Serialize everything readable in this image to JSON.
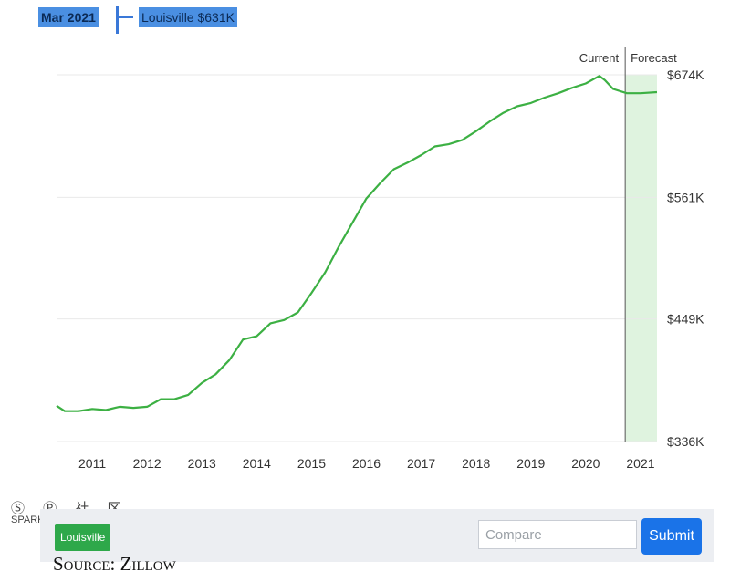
{
  "header": {
    "date": "Mar 2021",
    "series_label": "Louisville $631K"
  },
  "chart_data": {
    "type": "line",
    "title": "",
    "xlabel": "",
    "ylabel": "",
    "x_ticks": [
      "2011",
      "2012",
      "2013",
      "2014",
      "2015",
      "2016",
      "2017",
      "2018",
      "2019",
      "2020",
      "2021"
    ],
    "y_ticks": [
      "$336K",
      "$449K",
      "$561K",
      "$674K"
    ],
    "ylim": [
      336,
      674
    ],
    "xlim": [
      2010.35,
      2021.3
    ],
    "segment_labels": {
      "current": "Current",
      "forecast": "Forecast"
    },
    "forecast_start": 2020.72,
    "forecast_color": "#dff3df",
    "line_color": "#3cb043",
    "grid": true,
    "series": [
      {
        "name": "Louisville",
        "points": [
          [
            2010.35,
            369
          ],
          [
            2010.5,
            364
          ],
          [
            2010.75,
            364
          ],
          [
            2011.0,
            366
          ],
          [
            2011.25,
            365
          ],
          [
            2011.5,
            368
          ],
          [
            2011.75,
            367
          ],
          [
            2012.0,
            368
          ],
          [
            2012.25,
            375
          ],
          [
            2012.5,
            375
          ],
          [
            2012.75,
            379
          ],
          [
            2013.0,
            390
          ],
          [
            2013.25,
            398
          ],
          [
            2013.5,
            411
          ],
          [
            2013.75,
            430
          ],
          [
            2014.0,
            433
          ],
          [
            2014.25,
            445
          ],
          [
            2014.5,
            448
          ],
          [
            2014.75,
            455
          ],
          [
            2015.0,
            473
          ],
          [
            2015.25,
            492
          ],
          [
            2015.5,
            516
          ],
          [
            2015.75,
            538
          ],
          [
            2016.0,
            560
          ],
          [
            2016.25,
            574
          ],
          [
            2016.5,
            587
          ],
          [
            2016.75,
            593
          ],
          [
            2017.0,
            600
          ],
          [
            2017.25,
            608
          ],
          [
            2017.5,
            610
          ],
          [
            2017.75,
            614
          ],
          [
            2018.0,
            622
          ],
          [
            2018.25,
            631
          ],
          [
            2018.5,
            639
          ],
          [
            2018.75,
            645
          ],
          [
            2019.0,
            648
          ],
          [
            2019.25,
            653
          ],
          [
            2019.5,
            657
          ],
          [
            2019.75,
            662
          ],
          [
            2020.0,
            666
          ],
          [
            2020.25,
            673
          ],
          [
            2020.35,
            669
          ],
          [
            2020.5,
            661
          ],
          [
            2020.75,
            657
          ],
          [
            2021.0,
            657
          ],
          [
            2021.3,
            658
          ]
        ]
      }
    ]
  },
  "compare": {
    "placeholder": "Compare"
  },
  "submit_label": "Submit",
  "chip_label": "Louisville",
  "source": "Source: Zillow",
  "watermark": {
    "top": "Ⓢ Ⓟ 社 区",
    "bottom": "SPARK.COM"
  }
}
